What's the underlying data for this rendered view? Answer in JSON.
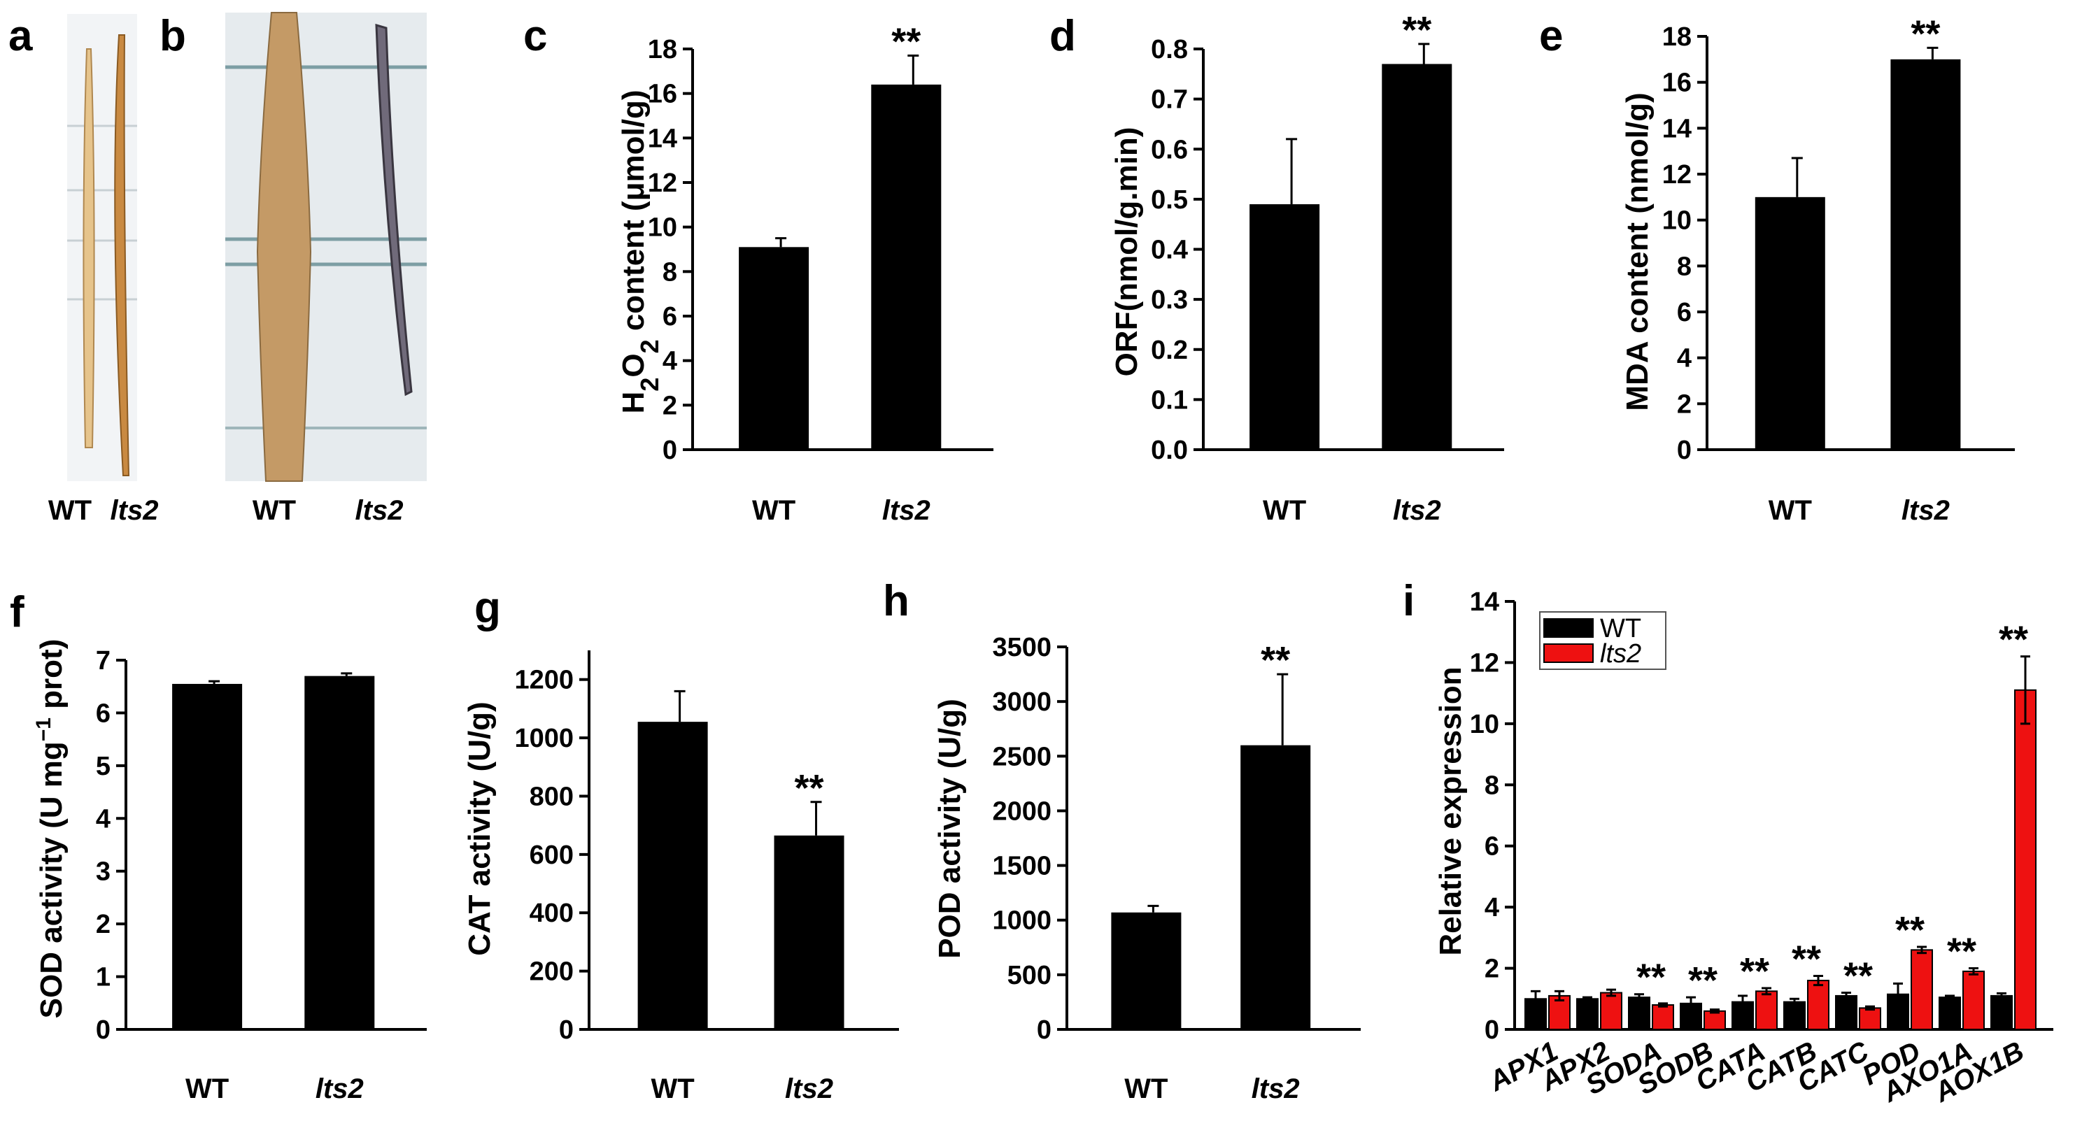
{
  "photos": {
    "a": {
      "letter": "a",
      "labels": [
        "WT",
        "lts2"
      ]
    },
    "b": {
      "letter": "b",
      "labels": [
        "WT",
        "lts2"
      ]
    }
  },
  "colors": {
    "wt": "#000000",
    "mutant": "#ee1111"
  },
  "chart_data": [
    {
      "id": "c",
      "letter": "c",
      "type": "bar",
      "categories": [
        "WT",
        "lts2"
      ],
      "values": [
        9.1,
        16.4
      ],
      "errors": [
        0.4,
        1.3
      ],
      "ylabel": "H2O2 content (μmol/g)",
      "ylim": [
        0,
        18
      ],
      "yticks": [
        0,
        2,
        4,
        6,
        8,
        10,
        12,
        14,
        16,
        18
      ],
      "ytick_labels": [
        "0",
        "2",
        "4",
        "6",
        "8",
        "10",
        "12",
        "14",
        "16",
        "18"
      ],
      "annotations": [
        "",
        "**"
      ]
    },
    {
      "id": "d",
      "letter": "d",
      "type": "bar",
      "categories": [
        "WT",
        "lts2"
      ],
      "values": [
        0.49,
        0.77
      ],
      "errors": [
        0.13,
        0.04
      ],
      "ylabel": "ORF(nmol/g.min)",
      "ylim": [
        0,
        0.8
      ],
      "yticks": [
        0,
        0.1,
        0.2,
        0.3,
        0.4,
        0.5,
        0.6,
        0.7,
        0.8
      ],
      "ytick_labels": [
        "0.0",
        "0.1",
        "0.2",
        "0.3",
        "0.4",
        "0.5",
        "0.6",
        "0.7",
        "0.8"
      ],
      "annotations": [
        "",
        "**"
      ]
    },
    {
      "id": "e",
      "letter": "e",
      "type": "bar",
      "categories": [
        "WT",
        "lts2"
      ],
      "values": [
        11.0,
        17.0
      ],
      "errors": [
        1.7,
        0.5
      ],
      "ylabel": "MDA content (nmol/g)",
      "ylim": [
        0,
        18
      ],
      "yticks": [
        0,
        2,
        4,
        6,
        8,
        10,
        12,
        14,
        16,
        18
      ],
      "ytick_labels": [
        "0",
        "2",
        "4",
        "6",
        "8",
        "10",
        "12",
        "14",
        "16",
        "18"
      ],
      "annotations": [
        "",
        "**"
      ]
    },
    {
      "id": "f",
      "letter": "f",
      "type": "bar",
      "categories": [
        "WT",
        "lts2"
      ],
      "values": [
        6.55,
        6.7
      ],
      "errors": [
        0.05,
        0.05
      ],
      "ylabel": "SOD activity (U mg",
      "ylabel_sup": "−1",
      "ylabel_tail": " prot)",
      "ylim": [
        0,
        7
      ],
      "yticks": [
        0,
        1,
        2,
        3,
        4,
        5,
        6,
        7
      ],
      "ytick_labels": [
        "0",
        "1",
        "2",
        "3",
        "4",
        "5",
        "6",
        "7"
      ],
      "annotations": [
        "",
        ""
      ]
    },
    {
      "id": "g",
      "letter": "g",
      "type": "bar",
      "categories": [
        "WT",
        "lts2"
      ],
      "values": [
        1055,
        665
      ],
      "errors": [
        105,
        115
      ],
      "ylabel": "CAT activity (U/g)",
      "ylim": [
        0,
        1300
      ],
      "yticks": [
        0,
        200,
        400,
        600,
        800,
        1000,
        1200
      ],
      "ytick_labels": [
        "0",
        "200",
        "400",
        "600",
        "800",
        "1000",
        "1200"
      ],
      "annotations": [
        "",
        "**"
      ]
    },
    {
      "id": "h",
      "letter": "h",
      "type": "bar",
      "categories": [
        "WT",
        "lts2"
      ],
      "values": [
        1070,
        2600
      ],
      "errors": [
        60,
        650
      ],
      "ylabel": "POD activity (U/g)",
      "ylim": [
        0,
        3500
      ],
      "yticks": [
        0,
        500,
        1000,
        1500,
        2000,
        2500,
        3000,
        3500
      ],
      "ytick_labels": [
        "0",
        "500",
        "1000",
        "1500",
        "2000",
        "2500",
        "3000",
        "3500"
      ],
      "annotations": [
        "",
        "**"
      ]
    },
    {
      "id": "i",
      "letter": "i",
      "type": "bar",
      "categories": [
        "APX1",
        "APX2",
        "SODA",
        "SODB",
        "CATA",
        "CATB",
        "CATC",
        "POD",
        "AXO1A",
        "AOX1B"
      ],
      "series": [
        {
          "name": "WT",
          "values": [
            1.0,
            1.0,
            1.05,
            0.85,
            0.9,
            0.9,
            1.1,
            1.15,
            1.05,
            1.1
          ],
          "errors": [
            0.25,
            0.05,
            0.1,
            0.2,
            0.2,
            0.1,
            0.1,
            0.35,
            0.05,
            0.08
          ]
        },
        {
          "name": "lts2",
          "values": [
            1.1,
            1.2,
            0.8,
            0.6,
            1.25,
            1.6,
            0.7,
            2.6,
            1.9,
            11.1
          ],
          "errors": [
            0.15,
            0.1,
            0.05,
            0.05,
            0.1,
            0.15,
            0.05,
            0.1,
            0.1,
            1.1
          ]
        }
      ],
      "ylabel": "Relative expression",
      "ylim": [
        0,
        14
      ],
      "yticks": [
        0,
        2,
        4,
        6,
        8,
        10,
        12,
        14
      ],
      "ytick_labels": [
        "0",
        "2",
        "4",
        "6",
        "8",
        "10",
        "12",
        "14"
      ],
      "annotations": [
        "",
        "",
        "**",
        "**",
        "**",
        "**",
        "**",
        "**",
        "**",
        "**"
      ],
      "legend": [
        "WT",
        "lts2"
      ],
      "legend_position": "top-left"
    }
  ]
}
